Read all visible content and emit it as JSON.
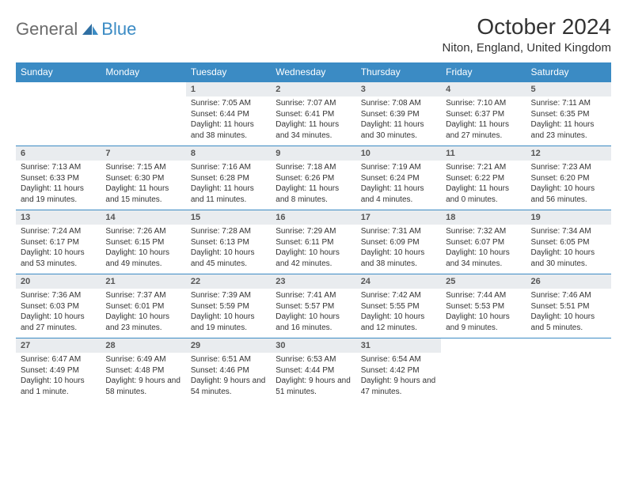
{
  "brand": {
    "part1": "General",
    "part2": "Blue"
  },
  "title": "October 2024",
  "location": "Niton, England, United Kingdom",
  "colors": {
    "accent": "#3b8bc4",
    "num_bg": "#e9ecef",
    "text": "#333333"
  },
  "weekdays": [
    "Sunday",
    "Monday",
    "Tuesday",
    "Wednesday",
    "Thursday",
    "Friday",
    "Saturday"
  ],
  "weeks": [
    [
      null,
      null,
      {
        "n": "1",
        "sr": "7:05 AM",
        "ss": "6:44 PM",
        "dl": "11 hours and 38 minutes."
      },
      {
        "n": "2",
        "sr": "7:07 AM",
        "ss": "6:41 PM",
        "dl": "11 hours and 34 minutes."
      },
      {
        "n": "3",
        "sr": "7:08 AM",
        "ss": "6:39 PM",
        "dl": "11 hours and 30 minutes."
      },
      {
        "n": "4",
        "sr": "7:10 AM",
        "ss": "6:37 PM",
        "dl": "11 hours and 27 minutes."
      },
      {
        "n": "5",
        "sr": "7:11 AM",
        "ss": "6:35 PM",
        "dl": "11 hours and 23 minutes."
      }
    ],
    [
      {
        "n": "6",
        "sr": "7:13 AM",
        "ss": "6:33 PM",
        "dl": "11 hours and 19 minutes."
      },
      {
        "n": "7",
        "sr": "7:15 AM",
        "ss": "6:30 PM",
        "dl": "11 hours and 15 minutes."
      },
      {
        "n": "8",
        "sr": "7:16 AM",
        "ss": "6:28 PM",
        "dl": "11 hours and 11 minutes."
      },
      {
        "n": "9",
        "sr": "7:18 AM",
        "ss": "6:26 PM",
        "dl": "11 hours and 8 minutes."
      },
      {
        "n": "10",
        "sr": "7:19 AM",
        "ss": "6:24 PM",
        "dl": "11 hours and 4 minutes."
      },
      {
        "n": "11",
        "sr": "7:21 AM",
        "ss": "6:22 PM",
        "dl": "11 hours and 0 minutes."
      },
      {
        "n": "12",
        "sr": "7:23 AM",
        "ss": "6:20 PM",
        "dl": "10 hours and 56 minutes."
      }
    ],
    [
      {
        "n": "13",
        "sr": "7:24 AM",
        "ss": "6:17 PM",
        "dl": "10 hours and 53 minutes."
      },
      {
        "n": "14",
        "sr": "7:26 AM",
        "ss": "6:15 PM",
        "dl": "10 hours and 49 minutes."
      },
      {
        "n": "15",
        "sr": "7:28 AM",
        "ss": "6:13 PM",
        "dl": "10 hours and 45 minutes."
      },
      {
        "n": "16",
        "sr": "7:29 AM",
        "ss": "6:11 PM",
        "dl": "10 hours and 42 minutes."
      },
      {
        "n": "17",
        "sr": "7:31 AM",
        "ss": "6:09 PM",
        "dl": "10 hours and 38 minutes."
      },
      {
        "n": "18",
        "sr": "7:32 AM",
        "ss": "6:07 PM",
        "dl": "10 hours and 34 minutes."
      },
      {
        "n": "19",
        "sr": "7:34 AM",
        "ss": "6:05 PM",
        "dl": "10 hours and 30 minutes."
      }
    ],
    [
      {
        "n": "20",
        "sr": "7:36 AM",
        "ss": "6:03 PM",
        "dl": "10 hours and 27 minutes."
      },
      {
        "n": "21",
        "sr": "7:37 AM",
        "ss": "6:01 PM",
        "dl": "10 hours and 23 minutes."
      },
      {
        "n": "22",
        "sr": "7:39 AM",
        "ss": "5:59 PM",
        "dl": "10 hours and 19 minutes."
      },
      {
        "n": "23",
        "sr": "7:41 AM",
        "ss": "5:57 PM",
        "dl": "10 hours and 16 minutes."
      },
      {
        "n": "24",
        "sr": "7:42 AM",
        "ss": "5:55 PM",
        "dl": "10 hours and 12 minutes."
      },
      {
        "n": "25",
        "sr": "7:44 AM",
        "ss": "5:53 PM",
        "dl": "10 hours and 9 minutes."
      },
      {
        "n": "26",
        "sr": "7:46 AM",
        "ss": "5:51 PM",
        "dl": "10 hours and 5 minutes."
      }
    ],
    [
      {
        "n": "27",
        "sr": "6:47 AM",
        "ss": "4:49 PM",
        "dl": "10 hours and 1 minute."
      },
      {
        "n": "28",
        "sr": "6:49 AM",
        "ss": "4:48 PM",
        "dl": "9 hours and 58 minutes."
      },
      {
        "n": "29",
        "sr": "6:51 AM",
        "ss": "4:46 PM",
        "dl": "9 hours and 54 minutes."
      },
      {
        "n": "30",
        "sr": "6:53 AM",
        "ss": "4:44 PM",
        "dl": "9 hours and 51 minutes."
      },
      {
        "n": "31",
        "sr": "6:54 AM",
        "ss": "4:42 PM",
        "dl": "9 hours and 47 minutes."
      },
      null,
      null
    ]
  ],
  "labels": {
    "sunrise": "Sunrise: ",
    "sunset": "Sunset: ",
    "daylight": "Daylight: "
  }
}
